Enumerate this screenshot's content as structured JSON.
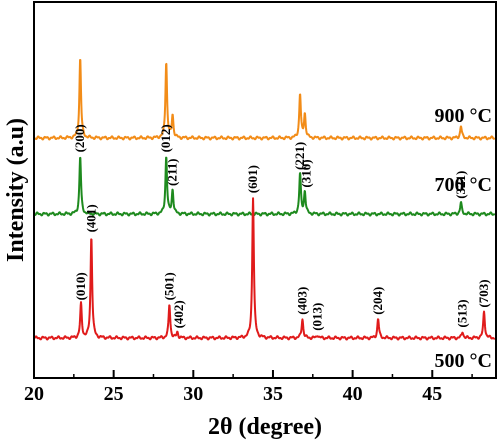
{
  "chart_data": {
    "type": "line",
    "title": "",
    "xlabel": "2θ (degree)",
    "ylabel": "Intensity (a.u)",
    "xlim": [
      20,
      49
    ],
    "x_ticks": [
      20,
      25,
      30,
      35,
      40,
      45
    ],
    "y_ticks_shown": false,
    "grid": false,
    "legend": "none",
    "series": [
      {
        "name": "900 °C",
        "color": "#f28c18",
        "baseline": 2.5,
        "peaks": [
          {
            "x": 22.9,
            "h": 1.0
          },
          {
            "x": 28.3,
            "h": 0.95
          },
          {
            "x": 28.7,
            "h": 0.28
          },
          {
            "x": 36.7,
            "h": 0.55
          },
          {
            "x": 37.0,
            "h": 0.3
          },
          {
            "x": 46.8,
            "h": 0.15
          }
        ],
        "peak_labels": []
      },
      {
        "name": "700 °C",
        "color": "#1e8a1e",
        "baseline": 1.55,
        "peaks": [
          {
            "x": 22.9,
            "h": 0.72
          },
          {
            "x": 28.3,
            "h": 0.72
          },
          {
            "x": 28.7,
            "h": 0.3
          },
          {
            "x": 36.7,
            "h": 0.5
          },
          {
            "x": 37.0,
            "h": 0.28
          },
          {
            "x": 46.8,
            "h": 0.14
          }
        ],
        "peak_labels": [
          {
            "x": 22.9,
            "text": "(200)"
          },
          {
            "x": 28.3,
            "text": "(012)"
          },
          {
            "x": 28.7,
            "text": "(211)"
          },
          {
            "x": 36.7,
            "text": "(221)"
          },
          {
            "x": 37.1,
            "text": "(310)"
          },
          {
            "x": 46.8,
            "text": "(321)"
          }
        ]
      },
      {
        "name": "500 °C",
        "color": "#e01b1b",
        "baseline": 0.0,
        "peaks": [
          {
            "x": 22.95,
            "h": 0.42
          },
          {
            "x": 23.6,
            "h": 1.27
          },
          {
            "x": 28.5,
            "h": 0.42
          },
          {
            "x": 29.0,
            "h": 0.07
          },
          {
            "x": 33.75,
            "h": 1.76
          },
          {
            "x": 36.85,
            "h": 0.24
          },
          {
            "x": 37.8,
            "h": 0.04
          },
          {
            "x": 41.6,
            "h": 0.24
          },
          {
            "x": 46.9,
            "h": 0.08
          },
          {
            "x": 48.25,
            "h": 0.33
          }
        ],
        "peak_labels": [
          {
            "x": 22.95,
            "text": "(010)"
          },
          {
            "x": 23.6,
            "text": "(401)"
          },
          {
            "x": 28.5,
            "text": "(501)"
          },
          {
            "x": 29.1,
            "text": "(402)"
          },
          {
            "x": 33.75,
            "text": "(601)"
          },
          {
            "x": 36.85,
            "text": "(403)"
          },
          {
            "x": 37.8,
            "text": "(013)"
          },
          {
            "x": 41.6,
            "text": "(204)"
          },
          {
            "x": 46.9,
            "text": "(513)"
          },
          {
            "x": 48.25,
            "text": "(703)"
          }
        ]
      }
    ]
  }
}
